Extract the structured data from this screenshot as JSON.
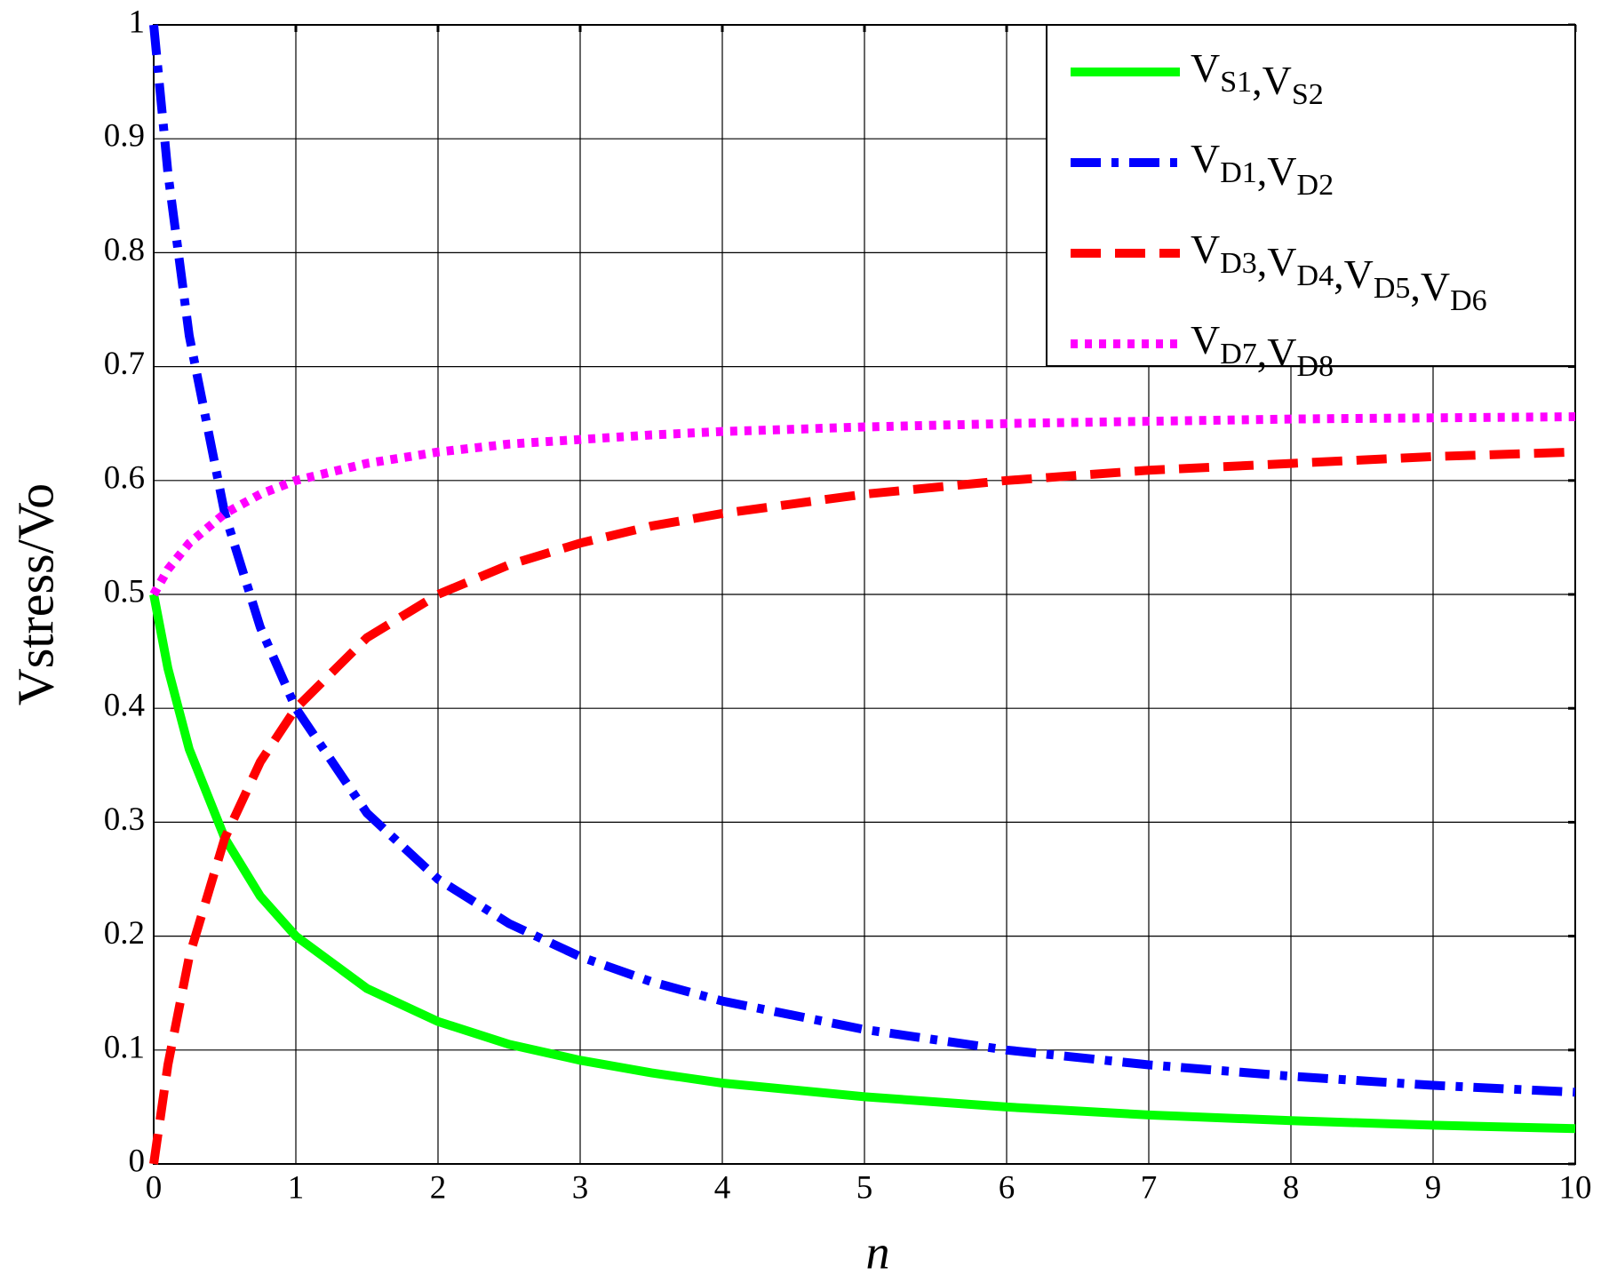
{
  "chart_data": {
    "type": "line",
    "x_label": "n",
    "y_label": "Vstress/Vo",
    "x": [
      0,
      0.1,
      0.25,
      0.5,
      0.75,
      1,
      1.5,
      2,
      2.5,
      3,
      3.5,
      4,
      5,
      6,
      7,
      8,
      9,
      10
    ],
    "series": [
      {
        "name": "VS1,VS2",
        "color": "#00ff00",
        "style": "solid",
        "values": [
          0.5,
          0.435,
          0.364,
          0.286,
          0.235,
          0.2,
          0.154,
          0.125,
          0.105,
          0.091,
          0.08,
          0.071,
          0.059,
          0.05,
          0.043,
          0.038,
          0.034,
          0.031
        ]
      },
      {
        "name": "VD1,VD2",
        "color": "#0000ff",
        "style": "dash-dot",
        "values": [
          1,
          0.87,
          0.727,
          0.571,
          0.471,
          0.4,
          0.308,
          0.25,
          0.211,
          0.182,
          0.16,
          0.143,
          0.118,
          0.1,
          0.087,
          0.077,
          0.069,
          0.063
        ]
      },
      {
        "name": "VD3,VD4,VD5,VD6",
        "color": "#ff0000",
        "style": "dashed",
        "values": [
          0,
          0.087,
          0.182,
          0.286,
          0.353,
          0.4,
          0.462,
          0.5,
          0.526,
          0.545,
          0.56,
          0.571,
          0.588,
          0.6,
          0.609,
          0.615,
          0.621,
          0.625
        ]
      },
      {
        "name": "VD7,VD8",
        "color": "#ff00ff",
        "style": "dotted",
        "values": [
          0.5,
          0.522,
          0.545,
          0.571,
          0.588,
          0.6,
          0.615,
          0.625,
          0.632,
          0.636,
          0.64,
          0.643,
          0.647,
          0.65,
          0.652,
          0.654,
          0.655,
          0.656
        ]
      }
    ],
    "xlim": [
      0,
      10
    ],
    "xticks": [
      0,
      1,
      2,
      3,
      4,
      5,
      6,
      7,
      8,
      9,
      10
    ],
    "ylim": [
      0,
      1
    ],
    "yticks": [
      0,
      0.1,
      0.2,
      0.3,
      0.4,
      0.5,
      0.6,
      0.7,
      0.8,
      0.9,
      1
    ],
    "grid": true,
    "legend": "upper-right"
  }
}
